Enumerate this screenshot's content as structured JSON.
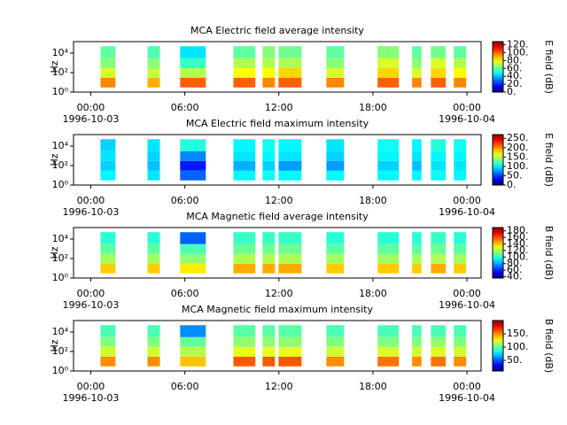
{
  "chart_data": [
    {
      "type": "heatmap",
      "title": "MCA  Electric field average intensity",
      "ylabel": "Hz",
      "colorbar_label": "E field (dB)",
      "colormap": "jet",
      "xlim": [
        -1.1,
        24.9
      ],
      "ylim": [
        1,
        150000
      ],
      "yscale": "log",
      "xticks": [
        {
          "value": 0,
          "label": "00:00",
          "date": "1996-10-03"
        },
        {
          "value": 6,
          "label": "06:00"
        },
        {
          "value": 12,
          "label": "12:00"
        },
        {
          "value": 18,
          "label": "18:00"
        },
        {
          "value": 24,
          "label": "00:00",
          "date": "1996-10-04"
        }
      ],
      "yticks": [
        {
          "value": 1,
          "label": "10⁰"
        },
        {
          "value": 100,
          "label": "10²"
        },
        {
          "value": 10000,
          "label": "10⁴"
        }
      ],
      "clim": [
        0,
        128
      ],
      "cticks": [
        {
          "value": 0,
          "label": "0."
        },
        {
          "value": 20,
          "label": "20."
        },
        {
          "value": 40,
          "label": "40."
        },
        {
          "value": 60,
          "label": "60."
        },
        {
          "value": 80,
          "label": "80."
        },
        {
          "value": 100,
          "label": "100."
        },
        {
          "value": 120,
          "label": "120."
        }
      ],
      "freq_edges": [
        3,
        30,
        300,
        3000,
        50000
      ],
      "segments": [
        [
          0.62,
          1.58
        ],
        [
          3.62,
          4.41
        ],
        [
          5.7,
          7.34
        ],
        [
          9.1,
          10.5
        ],
        [
          10.96,
          11.75
        ],
        [
          11.98,
          13.45
        ],
        [
          15.03,
          16.16
        ],
        [
          18.3,
          19.66
        ],
        [
          20.5,
          21.1
        ],
        [
          21.7,
          22.65
        ],
        [
          23.16,
          23.95
        ]
      ],
      "z": [
        [
          95,
          75,
          65,
          60
        ],
        [
          90,
          72,
          65,
          58
        ],
        [
          100,
          70,
          55,
          45
        ],
        [
          100,
          80,
          70,
          60
        ],
        [
          95,
          80,
          70,
          65
        ],
        [
          100,
          85,
          70,
          62
        ],
        [
          95,
          75,
          65,
          60
        ],
        [
          100,
          85,
          75,
          65
        ],
        [
          95,
          75,
          65,
          60
        ],
        [
          100,
          85,
          75,
          62
        ],
        [
          95,
          80,
          70,
          60
        ]
      ]
    },
    {
      "type": "heatmap",
      "title": "MCA  Electric field maximum intensity",
      "ylabel": "Hz",
      "colorbar_label": "E field (dB)",
      "colormap": "jet",
      "xlim": [
        -1.1,
        24.9
      ],
      "ylim": [
        1,
        150000
      ],
      "yscale": "log",
      "xticks": [
        {
          "value": 0,
          "label": "00:00",
          "date": "1996-10-03"
        },
        {
          "value": 6,
          "label": "06:00"
        },
        {
          "value": 12,
          "label": "12:00"
        },
        {
          "value": 18,
          "label": "18:00"
        },
        {
          "value": 24,
          "label": "00:00",
          "date": "1996-10-04"
        }
      ],
      "yticks": [
        {
          "value": 1,
          "label": "10⁰"
        },
        {
          "value": 100,
          "label": "10²"
        },
        {
          "value": 10000,
          "label": "10⁴"
        }
      ],
      "clim": [
        0,
        270
      ],
      "cticks": [
        {
          "value": 0,
          "label": "0."
        },
        {
          "value": 50,
          "label": "50."
        },
        {
          "value": 100,
          "label": "100."
        },
        {
          "value": 150,
          "label": "150."
        },
        {
          "value": 200,
          "label": "200."
        },
        {
          "value": 250,
          "label": "250."
        }
      ],
      "freq_edges": [
        3,
        30,
        300,
        3000,
        50000
      ],
      "segments": [
        [
          0.62,
          1.58
        ],
        [
          3.62,
          4.41
        ],
        [
          5.7,
          7.34
        ],
        [
          9.1,
          10.5
        ],
        [
          10.96,
          11.75
        ],
        [
          11.98,
          13.45
        ],
        [
          15.03,
          16.16
        ],
        [
          18.3,
          19.66
        ],
        [
          20.5,
          21.1
        ],
        [
          21.7,
          22.65
        ],
        [
          23.16,
          23.95
        ]
      ],
      "z": [
        [
          100,
          90,
          95,
          90
        ],
        [
          95,
          85,
          90,
          95
        ],
        [
          60,
          40,
          70,
          110
        ],
        [
          100,
          80,
          95,
          100
        ],
        [
          105,
          90,
          100,
          105
        ],
        [
          100,
          75,
          95,
          100
        ],
        [
          100,
          75,
          90,
          95
        ],
        [
          100,
          90,
          100,
          105
        ],
        [
          100,
          85,
          95,
          100
        ],
        [
          105,
          95,
          100,
          110
        ],
        [
          100,
          95,
          100,
          105
        ]
      ]
    },
    {
      "type": "heatmap",
      "title": "MCA  Magnetic field average intensity",
      "ylabel": "Hz",
      "colorbar_label": "B field (dB)",
      "colormap": "jet",
      "xlim": [
        -1.1,
        24.9
      ],
      "ylim": [
        1,
        150000
      ],
      "yscale": "log",
      "xticks": [
        {
          "value": 0,
          "label": "00:00",
          "date": "1996-10-03"
        },
        {
          "value": 6,
          "label": "06:00"
        },
        {
          "value": 12,
          "label": "12:00"
        },
        {
          "value": 18,
          "label": "18:00"
        },
        {
          "value": 24,
          "label": "00:00",
          "date": "1996-10-04"
        }
      ],
      "yticks": [
        {
          "value": 1,
          "label": "10⁰"
        },
        {
          "value": 100,
          "label": "10²"
        },
        {
          "value": 10000,
          "label": "10⁴"
        }
      ],
      "clim": [
        36,
        190
      ],
      "cticks": [
        {
          "value": 40,
          "label": "40."
        },
        {
          "value": 60,
          "label": "60."
        },
        {
          "value": 80,
          "label": "80."
        },
        {
          "value": 100,
          "label": "100."
        },
        {
          "value": 120,
          "label": "120."
        },
        {
          "value": 140,
          "label": "140."
        },
        {
          "value": 160,
          "label": "160."
        },
        {
          "value": 180,
          "label": "180."
        }
      ],
      "freq_edges": [
        3,
        30,
        300,
        3000,
        50000
      ],
      "segments": [
        [
          0.62,
          1.58
        ],
        [
          3.62,
          4.41
        ],
        [
          5.7,
          7.34
        ],
        [
          9.1,
          10.5
        ],
        [
          10.96,
          11.75
        ],
        [
          11.98,
          13.45
        ],
        [
          15.03,
          16.16
        ],
        [
          18.3,
          19.66
        ],
        [
          20.5,
          21.1
        ],
        [
          21.7,
          22.65
        ],
        [
          23.16,
          23.95
        ]
      ],
      "z": [
        [
          140,
          118,
          108,
          100
        ],
        [
          140,
          118,
          108,
          100
        ],
        [
          135,
          115,
          105,
          70
        ],
        [
          145,
          120,
          110,
          102
        ],
        [
          145,
          120,
          110,
          102
        ],
        [
          145,
          120,
          110,
          102
        ],
        [
          140,
          118,
          108,
          100
        ],
        [
          140,
          118,
          108,
          100
        ],
        [
          140,
          118,
          108,
          100
        ],
        [
          145,
          120,
          110,
          102
        ],
        [
          140,
          118,
          108,
          100
        ]
      ]
    },
    {
      "type": "heatmap",
      "title": "MCA  Magnetic field maximum intensity",
      "ylabel": "Hz",
      "colorbar_label": "B field (dB)",
      "colormap": "jet",
      "xlim": [
        -1.1,
        24.9
      ],
      "ylim": [
        1,
        150000
      ],
      "yscale": "log",
      "xticks": [
        {
          "value": 0,
          "label": "00:00",
          "date": "1996-10-03"
        },
        {
          "value": 6,
          "label": "06:00"
        },
        {
          "value": 12,
          "label": "12:00"
        },
        {
          "value": 18,
          "label": "18:00"
        },
        {
          "value": 24,
          "label": "00:00",
          "date": "1996-10-04"
        }
      ],
      "yticks": [
        {
          "value": 1,
          "label": "10⁰"
        },
        {
          "value": 100,
          "label": "10²"
        },
        {
          "value": 10000,
          "label": "10⁴"
        }
      ],
      "clim": [
        10,
        200
      ],
      "cticks": [
        {
          "value": 50,
          "label": "50."
        },
        {
          "value": 100,
          "label": "100."
        },
        {
          "value": 150,
          "label": "150."
        }
      ],
      "freq_edges": [
        3,
        30,
        300,
        3000,
        50000
      ],
      "segments": [
        [
          0.62,
          1.58
        ],
        [
          3.62,
          4.41
        ],
        [
          5.7,
          7.34
        ],
        [
          9.1,
          10.5
        ],
        [
          10.96,
          11.75
        ],
        [
          11.98,
          13.45
        ],
        [
          15.03,
          16.16
        ],
        [
          18.3,
          19.66
        ],
        [
          20.5,
          21.1
        ],
        [
          21.7,
          22.65
        ],
        [
          23.16,
          23.95
        ]
      ],
      "z": [
        [
          150,
          120,
          105,
          95
        ],
        [
          150,
          120,
          105,
          95
        ],
        [
          140,
          115,
          100,
          60
        ],
        [
          160,
          125,
          108,
          98
        ],
        [
          160,
          125,
          108,
          98
        ],
        [
          160,
          125,
          108,
          98
        ],
        [
          150,
          120,
          105,
          95
        ],
        [
          155,
          122,
          105,
          95
        ],
        [
          150,
          120,
          105,
          95
        ],
        [
          155,
          122,
          108,
          95
        ],
        [
          150,
          120,
          105,
          95
        ]
      ]
    }
  ]
}
